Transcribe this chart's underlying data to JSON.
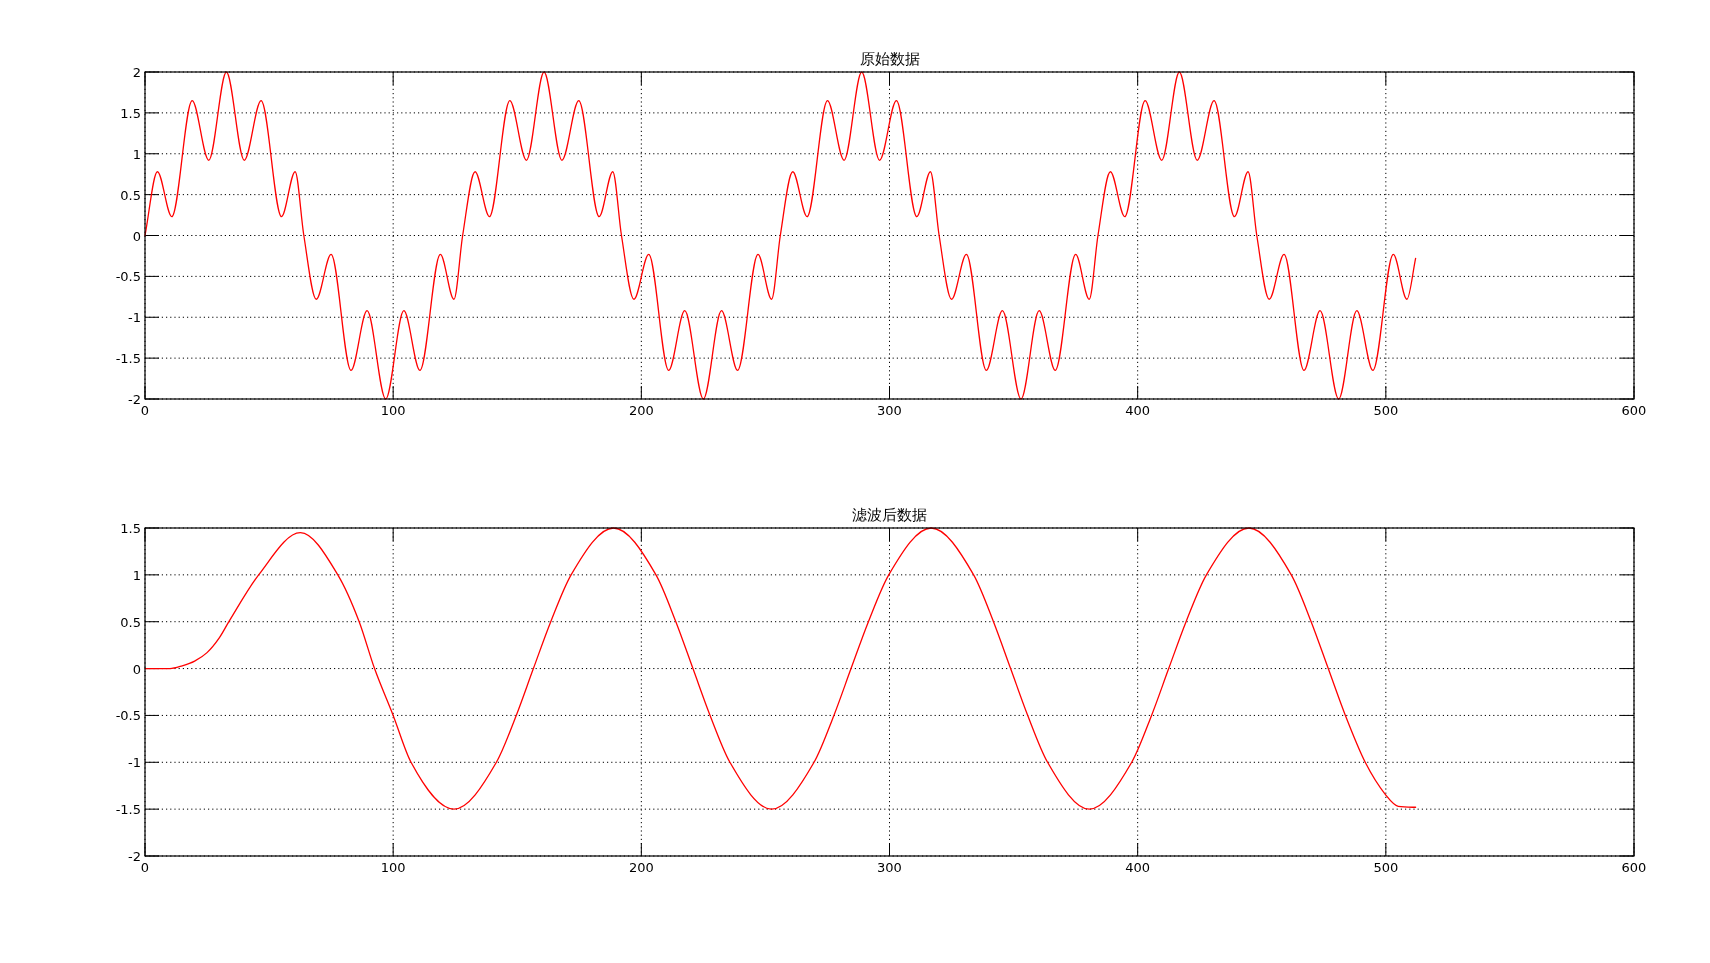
{
  "chart_data": [
    {
      "type": "line",
      "title": "原始数据",
      "color": "#ff0000",
      "xlim": [
        0,
        600
      ],
      "xticks": [
        0,
        100,
        200,
        300,
        400,
        500,
        600
      ],
      "ylim": [
        -2,
        2
      ],
      "yticks": [
        -2,
        -1.5,
        -1,
        -0.5,
        0,
        0.5,
        1,
        1.5,
        2
      ],
      "grid": true,
      "x": [
        0,
        5,
        10.8,
        19,
        25.7,
        32.8,
        40,
        46.8,
        55,
        60.5,
        64,
        69,
        75,
        83,
        89.5,
        97,
        104.3,
        110.8,
        119,
        124.5,
        128,
        133,
        138.8,
        147,
        153.7,
        160.8,
        168,
        174.8,
        183,
        188.5,
        192,
        197,
        203,
        211,
        217.5,
        225,
        232.3,
        238.8,
        247,
        252.5,
        256,
        261,
        266.8,
        275,
        281.7,
        288.8,
        296,
        302.8,
        311,
        316.5,
        320,
        325,
        331,
        339,
        345.5,
        353,
        360.3,
        366.8,
        375,
        380.5,
        384,
        389,
        394.8,
        403,
        409.7,
        416.8,
        424,
        430.8,
        439,
        444.5,
        448,
        453,
        459,
        467,
        473.5,
        481,
        488.3,
        494.8,
        503,
        508.5,
        512
      ],
      "values": [
        0,
        0.78,
        0.23,
        1.65,
        0.92,
        2,
        0.92,
        1.65,
        0.23,
        0.78,
        0,
        -0.78,
        -0.23,
        -1.65,
        -0.92,
        -2,
        -0.92,
        -1.65,
        -0.23,
        -0.78,
        0,
        0.78,
        0.23,
        1.65,
        0.92,
        2,
        0.92,
        1.65,
        0.23,
        0.78,
        0,
        -0.78,
        -0.23,
        -1.65,
        -0.92,
        -2,
        -0.92,
        -1.65,
        -0.23,
        -0.78,
        0,
        0.78,
        0.23,
        1.65,
        0.92,
        2,
        0.92,
        1.65,
        0.23,
        0.78,
        0,
        -0.78,
        -0.23,
        -1.65,
        -0.92,
        -2,
        -0.92,
        -1.65,
        -0.23,
        -0.78,
        0,
        0.78,
        0.23,
        1.65,
        0.92,
        2,
        0.92,
        1.65,
        0.23,
        0.78,
        0,
        -0.78,
        -0.23,
        -1.65,
        -0.92,
        -2,
        -0.92,
        -1.65,
        -0.23,
        -0.78,
        -0.28
      ]
    },
    {
      "type": "line",
      "title": "滤波后数据",
      "color": "#ff0000",
      "xlim": [
        0,
        600
      ],
      "xticks": [
        0,
        100,
        200,
        300,
        400,
        500,
        600
      ],
      "ylim": [
        -2,
        1.5
      ],
      "yticks": [
        -2,
        -1.5,
        -1,
        -0.5,
        0,
        0.5,
        1,
        1.5
      ],
      "grid": true,
      "x": [
        0,
        10,
        15,
        20,
        25,
        30,
        33.8,
        45.8,
        62.6,
        77.7,
        86.3,
        92.5,
        100,
        107.2,
        124.5,
        141.6,
        149.6,
        156.5,
        163.5,
        171.7,
        188.8,
        205.9,
        213.9,
        220.8,
        227.7,
        235.7,
        252.5,
        269.6,
        277.6,
        284.5,
        291.5,
        299.7,
        316.8,
        333.9,
        341.9,
        348.8,
        355.7,
        363.7,
        380.5,
        397.6,
        405.6,
        412.5,
        419.5,
        427.7,
        444.8,
        461.9,
        469.9,
        476.8,
        483.7,
        491.7,
        500,
        505,
        512
      ],
      "values": [
        0,
        0,
        0.03,
        0.08,
        0.17,
        0.33,
        0.5,
        1,
        1.45,
        1,
        0.5,
        0,
        -0.5,
        -1,
        -1.5,
        -1,
        -0.5,
        0,
        0.5,
        1,
        1.5,
        1,
        0.5,
        0,
        -0.5,
        -1,
        -1.5,
        -1,
        -0.5,
        0,
        0.5,
        1,
        1.5,
        1,
        0.5,
        0,
        -0.5,
        -1,
        -1.5,
        -1,
        -0.5,
        0,
        0.5,
        1,
        1.5,
        1,
        0.5,
        0,
        -0.5,
        -1,
        -1.35,
        -1.47,
        -1.48
      ]
    }
  ]
}
